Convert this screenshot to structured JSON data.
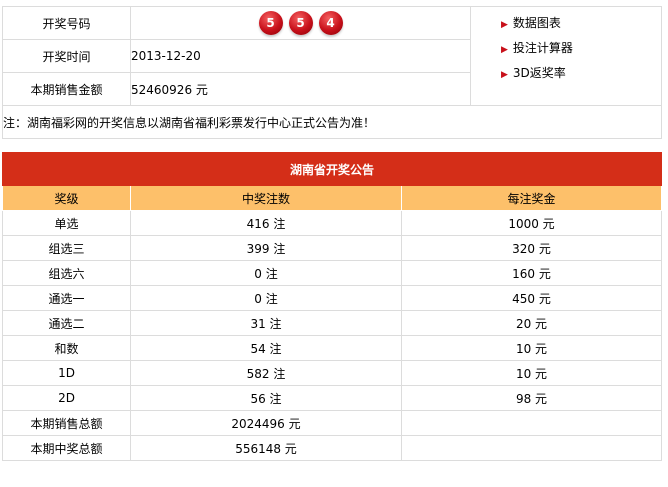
{
  "info": {
    "rows": [
      {
        "label": "开奖号码"
      },
      {
        "label": "开奖时间",
        "value": "2013-12-20"
      },
      {
        "label": "本期销售金额",
        "value": "52460926 元"
      }
    ],
    "balls": [
      "5",
      "5",
      "4"
    ],
    "links": [
      "数据图表",
      "投注计算器",
      "3D返奖率"
    ],
    "note": "注：湖南福彩网的开奖信息以湖南省福利彩票发行中心正式公告为准！"
  },
  "prize": {
    "title": "湖南省开奖公告",
    "headers": [
      "奖级",
      "中奖注数",
      "每注奖金"
    ],
    "rows": [
      [
        "单选",
        "416 注",
        "1000 元"
      ],
      [
        "组选三",
        "399 注",
        "320 元"
      ],
      [
        "组选六",
        "0 注",
        "160 元"
      ],
      [
        "通选一",
        "0 注",
        "450 元"
      ],
      [
        "通选二",
        "31 注",
        "20 元"
      ],
      [
        "和数",
        "54 注",
        "10 元"
      ],
      [
        "1D",
        "582 注",
        "10 元"
      ],
      [
        "2D",
        "56 注",
        "98 元"
      ],
      [
        "本期销售总额",
        "2024496 元",
        ""
      ],
      [
        "本期中奖总额",
        "556148 元",
        ""
      ]
    ]
  },
  "colors": {
    "title_bg": "#d42e18",
    "header_bg": "#fdc06a",
    "ball": "#c8101a"
  }
}
